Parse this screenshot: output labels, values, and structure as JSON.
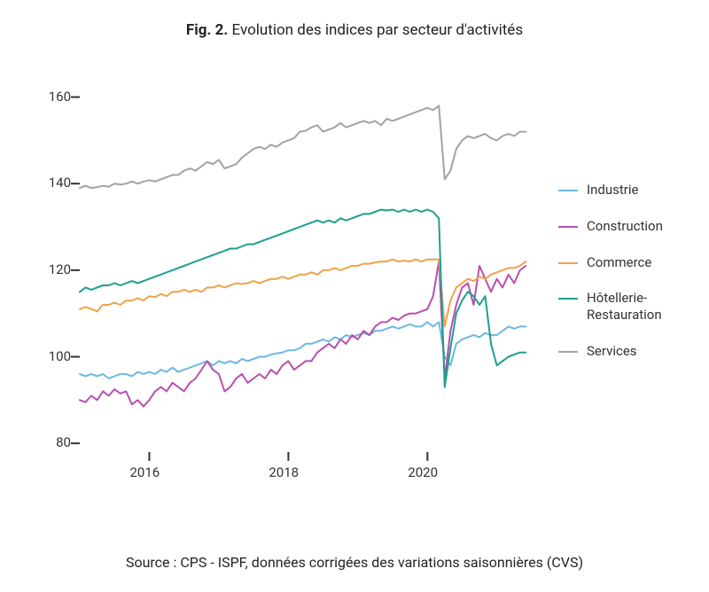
{
  "figure": {
    "title_prefix": "Fig. 2.",
    "title_text": "Evolution des indices par secteur d'activités",
    "title_fontsize": 17,
    "source": "Source : CPS - ISPF, données corrigées des variations saisonnières (CVS)",
    "source_fontsize": 16
  },
  "chart": {
    "type": "line",
    "background_color": "#ffffff",
    "x": {
      "start": 2015.0,
      "end": 2021.5,
      "ticks": [
        2016,
        2018,
        2020
      ],
      "tick_labels": [
        "2016",
        "2018",
        "2020"
      ],
      "tick_fontsize": 15
    },
    "y": {
      "min": 78,
      "max": 164,
      "ticks": [
        80,
        100,
        120,
        140,
        160
      ],
      "tick_labels": [
        "80",
        "100",
        "120",
        "140",
        "160"
      ],
      "tick_fontsize": 15
    },
    "tick_color": "#333333",
    "line_width": 2,
    "series_interval_years": 0.0833,
    "series": [
      {
        "name": "Industrie",
        "color": "#6cb8e3",
        "values": [
          96,
          95.5,
          96,
          95.5,
          96,
          95,
          95.5,
          96,
          96,
          95.5,
          96.5,
          96,
          96.5,
          96,
          97,
          96.5,
          97.5,
          96.5,
          97,
          97.5,
          98,
          98.5,
          99,
          98,
          99,
          98.5,
          99,
          98.5,
          99.5,
          99,
          99.5,
          100,
          100,
          100.5,
          100.8,
          101,
          101.5,
          101.5,
          102,
          103,
          103,
          103.5,
          104,
          103.5,
          104.5,
          104,
          105,
          104.5,
          105,
          105.5,
          105,
          106,
          106,
          106.5,
          107,
          106.5,
          107,
          107.5,
          107,
          107,
          108,
          107,
          108,
          100,
          98,
          103,
          104,
          104.5,
          105,
          104.5,
          105.5,
          105,
          105,
          106,
          107,
          106.5,
          107,
          107
        ]
      },
      {
        "name": "Construction",
        "color": "#b84fb0",
        "values": [
          90,
          89.5,
          91,
          90,
          92,
          91,
          92.5,
          91.5,
          92,
          89,
          90,
          88.5,
          90,
          92,
          93,
          92,
          94,
          93,
          92,
          94,
          95,
          97,
          99,
          97,
          96,
          92,
          93,
          95,
          96,
          94,
          95,
          96,
          95,
          97,
          96,
          98,
          99,
          97,
          98,
          99,
          99,
          101,
          102,
          103,
          102,
          104,
          103,
          105,
          104,
          106,
          105,
          107,
          108,
          108,
          109,
          108.5,
          109.5,
          110,
          110,
          110.5,
          111,
          114,
          122,
          95,
          106,
          112,
          116,
          117,
          112,
          121,
          118,
          115,
          118,
          116,
          119,
          117,
          120,
          121
        ]
      },
      {
        "name": "Commerce",
        "color": "#f0a24a",
        "values": [
          111,
          111.5,
          111,
          110.5,
          112,
          112,
          112.5,
          112,
          113,
          113,
          113.5,
          113,
          114,
          113.8,
          114.5,
          114,
          115,
          115,
          115.5,
          115,
          115.5,
          115,
          116,
          116,
          116.5,
          116,
          116.5,
          117,
          116.8,
          117,
          117.5,
          117,
          117.5,
          118,
          118,
          118.5,
          118,
          118.5,
          119,
          119,
          119.5,
          119,
          120,
          120,
          120.5,
          120,
          120.5,
          121,
          121,
          121.5,
          121.5,
          121.8,
          122,
          122,
          122.5,
          122,
          122.2,
          122,
          122.5,
          122,
          122.5,
          122.5,
          122.5,
          107,
          113,
          116,
          117,
          118,
          117.5,
          118.5,
          118,
          119,
          119.5,
          120,
          120.5,
          120.5,
          121,
          122
        ]
      },
      {
        "name": "Hôtellerie-Restauration",
        "color": "#1f9e8e",
        "values": [
          115,
          116,
          115.5,
          116,
          116.5,
          116.5,
          117,
          116.5,
          117,
          117.5,
          117,
          117.5,
          118,
          118.5,
          119,
          119.5,
          120,
          120.5,
          121,
          121.5,
          122,
          122.5,
          123,
          123.5,
          124,
          124.5,
          125,
          125,
          125.5,
          126,
          126,
          126.5,
          127,
          127.5,
          128,
          128.5,
          129,
          129.5,
          130,
          130.5,
          131,
          131.5,
          131,
          131.5,
          131,
          132,
          131.5,
          132,
          132.5,
          133,
          133,
          133.5,
          134,
          133.8,
          134,
          133.5,
          134,
          133.5,
          134,
          133.5,
          134,
          133.5,
          132,
          93,
          102,
          110,
          113,
          115,
          114,
          112,
          114,
          103,
          98,
          99,
          100,
          100.5,
          101,
          101
        ]
      },
      {
        "name": "Services",
        "color": "#a3a3a3",
        "values": [
          139,
          139.5,
          139,
          139.2,
          139.5,
          139.3,
          140,
          139.8,
          140,
          140.5,
          140,
          140.5,
          140.8,
          140.5,
          141,
          141.5,
          142,
          142,
          143,
          143.5,
          143,
          144,
          145,
          144.5,
          145.5,
          143.5,
          144,
          144.5,
          146,
          147,
          148,
          148.5,
          148,
          149,
          148.5,
          149.5,
          150,
          150.5,
          152,
          152.2,
          153,
          153.5,
          152,
          152.5,
          153,
          154,
          153,
          153.5,
          154,
          154.5,
          154,
          154.5,
          153.5,
          155,
          154.5,
          155,
          155.5,
          156,
          156.5,
          157,
          157.5,
          157,
          158,
          141,
          143,
          148,
          150,
          151,
          150.5,
          151,
          151.5,
          150.5,
          150,
          151,
          151.5,
          151,
          152,
          152
        ]
      }
    ],
    "legend": {
      "position": "right",
      "items": [
        {
          "label": "Industrie",
          "color": "#6cb8e3"
        },
        {
          "label": "Construction",
          "color": "#b84fb0"
        },
        {
          "label": "Commerce",
          "color": "#f0a24a"
        },
        {
          "label": "Hôtellerie-\nRestauration",
          "color": "#1f9e8e"
        },
        {
          "label": "Services",
          "color": "#a3a3a3"
        }
      ],
      "fontsize": 15
    }
  }
}
